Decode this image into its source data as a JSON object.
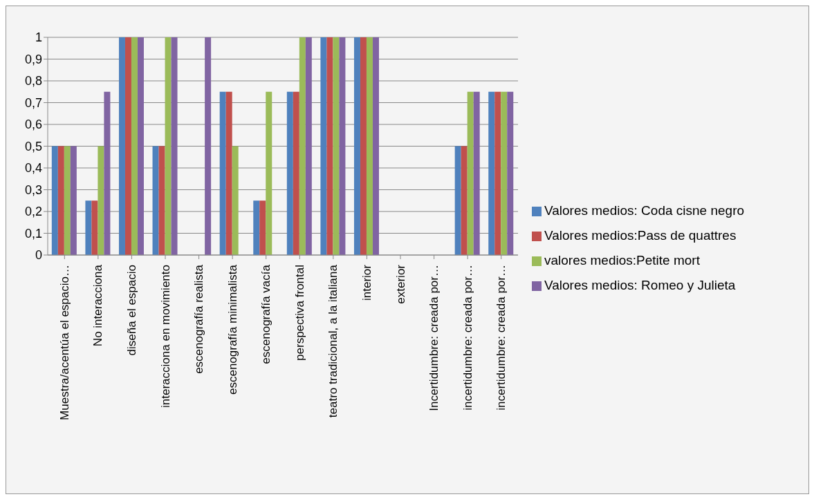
{
  "chart_data": {
    "type": "bar",
    "categories": [
      "Muestra/acentúa el espacio…",
      "No interacciona",
      "diseña el espacio",
      "interacciona en movimiento",
      "escenografía realista",
      "escenografía minimalista",
      "escenografía vacía",
      "perspectiva frontal",
      "teatro tradicional, a la italiana",
      "interior",
      "exterior",
      "Incertidumbre: creada por…",
      "incertidumbre: creada por…",
      "incertidumbre: creada por…"
    ],
    "series": [
      {
        "name": "Valores medios: Coda cisne negro",
        "color": "#4f81bd",
        "values": [
          0.5,
          0.25,
          1,
          0.5,
          0,
          0.75,
          0.25,
          0.75,
          1,
          1,
          0,
          0,
          0.5,
          0.75
        ]
      },
      {
        "name": "Valores medios:Pass de quattres",
        "color": "#c0504d",
        "values": [
          0.5,
          0.25,
          1,
          0.5,
          0,
          0.75,
          0.25,
          0.75,
          1,
          1,
          0,
          0,
          0.5,
          0.75
        ]
      },
      {
        "name": "valores medios:Petite mort",
        "color": "#9bbb59",
        "values": [
          0.5,
          0.5,
          1,
          1,
          0,
          0.5,
          0.75,
          1,
          1,
          1,
          0,
          0,
          0.75,
          0.75
        ]
      },
      {
        "name": "Valores medios: Romeo y Julieta",
        "color": "#8064a2",
        "values": [
          0.5,
          0.75,
          1,
          1,
          1,
          0,
          0,
          1,
          1,
          1,
          0,
          0,
          0.75,
          0.75
        ]
      }
    ],
    "ylim": [
      0,
      1
    ],
    "yticks": [
      0,
      {
        "value": 0.1,
        "label": "0,1"
      },
      {
        "value": 0.2,
        "label": "0,2"
      },
      {
        "value": 0.3,
        "label": "0,3"
      },
      {
        "value": 0.4,
        "label": "0,4"
      },
      {
        "value": 0.5,
        "label": "0,5"
      },
      {
        "value": 0.6,
        "label": "0,6"
      },
      {
        "value": 0.7,
        "label": "0,7"
      },
      {
        "value": 0.8,
        "label": "0,8"
      },
      {
        "value": 0.9,
        "label": "0,9"
      },
      1
    ],
    "grid": "y",
    "legend": "right"
  }
}
